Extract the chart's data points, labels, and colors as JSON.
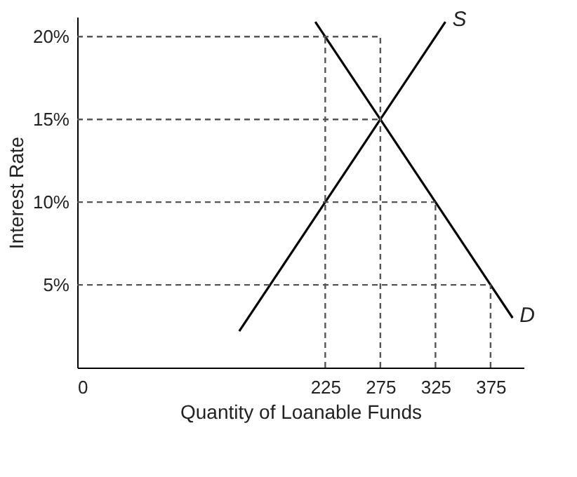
{
  "chart_data": {
    "type": "line",
    "xlabel": "Quantity of Loanable Funds",
    "ylabel": "Interest Rate",
    "xlim": [
      0,
      405
    ],
    "ylim": [
      0,
      21.2
    ],
    "xticks": [
      0,
      225,
      275,
      325,
      375
    ],
    "yticks": [
      {
        "value": 5,
        "label": "5%"
      },
      {
        "value": 10,
        "label": "10%"
      },
      {
        "value": 15,
        "label": "15%"
      },
      {
        "value": 20,
        "label": "20%"
      }
    ],
    "grid": false,
    "marker": "none",
    "series": [
      {
        "name": "S",
        "color": "#000000",
        "x": [
          147,
          225,
          275,
          334
        ],
        "values": [
          2.2,
          10,
          15,
          20.9
        ]
      },
      {
        "name": "D",
        "color": "#000000",
        "x": [
          216,
          225,
          275,
          325,
          375,
          395
        ],
        "values": [
          20.9,
          20,
          15,
          10,
          5,
          3
        ]
      },
      {
        "color": "#555555",
        "line_style": "dashed",
        "x": [
          0,
          275
        ],
        "values": [
          20,
          20
        ]
      },
      {
        "color": "#555555",
        "line_style": "dashed",
        "x": [
          0,
          275
        ],
        "values": [
          15,
          15
        ]
      },
      {
        "color": "#555555",
        "line_style": "dashed",
        "x": [
          0,
          325
        ],
        "values": [
          10,
          10
        ]
      },
      {
        "color": "#555555",
        "line_style": "dashed",
        "x": [
          0,
          375
        ],
        "values": [
          5,
          5
        ]
      },
      {
        "color": "#555555",
        "line_style": "dashed",
        "x": [
          225,
          225
        ],
        "values": [
          0,
          20
        ]
      },
      {
        "color": "#555555",
        "line_style": "dashed",
        "x": [
          275,
          275
        ],
        "values": [
          0,
          20
        ]
      },
      {
        "color": "#555555",
        "line_style": "dashed",
        "x": [
          325,
          325
        ],
        "values": [
          0,
          10
        ]
      },
      {
        "color": "#555555",
        "line_style": "dashed",
        "x": [
          375,
          375
        ],
        "values": [
          0,
          5
        ]
      }
    ]
  }
}
